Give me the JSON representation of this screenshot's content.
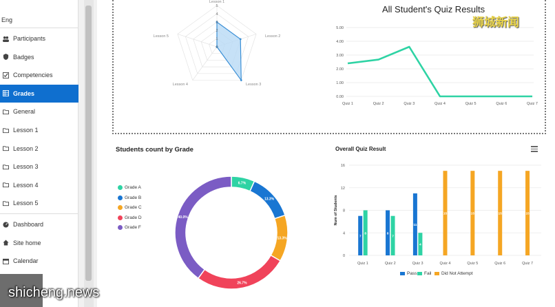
{
  "sidebar": {
    "lang": "Eng",
    "items": [
      {
        "label": "Participants",
        "icon": "users-icon",
        "active": false
      },
      {
        "label": "Badges",
        "icon": "shield-icon",
        "active": false
      },
      {
        "label": "Competencies",
        "icon": "checkbox-icon",
        "active": false
      },
      {
        "label": "Grades",
        "icon": "table-icon",
        "active": true
      },
      {
        "label": "General",
        "icon": "folder-icon",
        "active": false
      },
      {
        "label": "Lesson 1",
        "icon": "folder-icon",
        "active": false
      },
      {
        "label": "Lesson 2",
        "icon": "folder-icon",
        "active": false
      },
      {
        "label": "Lesson 3",
        "icon": "folder-icon",
        "active": false
      },
      {
        "label": "Lesson 4",
        "icon": "folder-icon",
        "active": false
      },
      {
        "label": "Lesson 5",
        "icon": "folder-icon",
        "active": false
      }
    ],
    "secondary_items": [
      {
        "label": "Dashboard",
        "icon": "dashboard-icon"
      },
      {
        "label": "Site home",
        "icon": "home-icon"
      },
      {
        "label": "Calendar",
        "icon": "calendar-icon"
      }
    ]
  },
  "watermarks": {
    "top": "狮城新闻",
    "bottom": "shicheng.news"
  },
  "colors": {
    "accent": "#0f6fcf",
    "teal": "#2ed3a4",
    "blue": "#1976d2",
    "orange": "#f5a623",
    "red": "#f0435a",
    "purple": "#7b5cc4",
    "radar_fill": "#b8d9f5",
    "radar_line": "#3a8fd6"
  },
  "chart_data": [
    {
      "type": "radar",
      "axes": [
        "Lesson 1",
        "Lesson 2",
        "Lesson 3",
        "Lesson 4",
        "Lesson 5"
      ],
      "values": [
        3,
        3,
        5,
        0,
        0
      ],
      "ticks": [
        "0",
        "1",
        "2",
        "3",
        "4",
        "5"
      ],
      "rmax": 5
    },
    {
      "type": "line",
      "title": "All Student's Quiz Results",
      "categories": [
        "Quiz 1",
        "Quiz 2",
        "Quiz 3",
        "Quiz 4",
        "Quiz 5",
        "Quiz 6",
        "Quiz 7"
      ],
      "values": [
        2.4,
        2.67,
        3.6,
        0,
        0,
        0,
        0
      ],
      "yticks": [
        "0.00",
        "1.00",
        "2.00",
        "3.00",
        "4.00",
        "5.00"
      ],
      "ylim": [
        0,
        5
      ]
    },
    {
      "type": "pie",
      "title": "Students count by Grade",
      "labels": [
        "Grade A",
        "Grade B",
        "Grade C",
        "Grade D",
        "Grade F"
      ],
      "values": [
        6.7,
        13.3,
        13.3,
        26.7,
        40.0
      ],
      "slice_labels": [
        "6.7%",
        "13.3%",
        "13.3%",
        "26.7%",
        "40.0%"
      ]
    },
    {
      "type": "bar",
      "title": "Overall Quiz Result",
      "ylabel": "Num of Students",
      "categories": [
        "Quiz 1",
        "Quiz 2",
        "Quiz 3",
        "Quiz 4",
        "Quiz 5",
        "Quiz 6",
        "Quiz 7"
      ],
      "series": [
        {
          "name": "Pass",
          "values": [
            7,
            8,
            11,
            0,
            0,
            0,
            0
          ]
        },
        {
          "name": "Fail",
          "values": [
            8,
            7,
            4,
            0,
            0,
            0,
            0
          ]
        },
        {
          "name": "Did Not Attempt",
          "values": [
            0,
            0,
            0,
            15,
            15,
            15,
            15
          ]
        }
      ],
      "bar_labels": [
        [
          "7",
          "8",
          "11",
          "",
          "",
          "",
          ""
        ],
        [
          "8",
          "7",
          "4",
          "",
          "",
          "",
          ""
        ],
        [
          "",
          "",
          "",
          "15",
          "15",
          "15",
          "15"
        ]
      ],
      "yticks": [
        "0",
        "4",
        "8",
        "12",
        "16"
      ],
      "ylim": [
        0,
        16
      ]
    }
  ]
}
